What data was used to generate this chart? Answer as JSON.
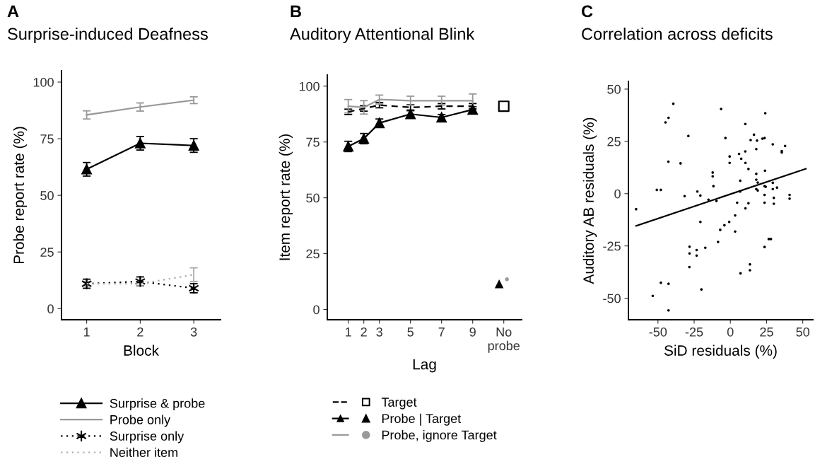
{
  "chart_data": [
    {
      "type": "line",
      "title": "Surprise-induced Deafness",
      "annotations": [
        "A"
      ],
      "xlabel": "Block",
      "ylabel": "Probe report rate (%)",
      "x": [
        1,
        2,
        3
      ],
      "xlim": [
        0.53,
        3.5
      ],
      "xticks": [
        1,
        2,
        3
      ],
      "ylim": [
        -4.9,
        105
      ],
      "yticks": [
        0,
        25,
        50,
        75,
        100
      ],
      "legend": "bottom",
      "series": [
        {
          "name": "Surprise & probe",
          "color": "#000000",
          "marker": "triangle",
          "line_style": "solid",
          "values": [
            61.5,
            73,
            72
          ],
          "errors": [
            3,
            3,
            3
          ]
        },
        {
          "name": "Probe only",
          "color": "#999999",
          "marker": "none",
          "line_style": "solid",
          "values": [
            85.5,
            89,
            92
          ],
          "errors": [
            1.8,
            1.8,
            1.5
          ]
        },
        {
          "name": "Surprise only",
          "color": "#000000",
          "marker": "cross",
          "line_style": "dotted",
          "values": [
            11,
            12,
            9
          ],
          "errors": [
            2,
            2,
            2
          ]
        },
        {
          "name": "Neither item",
          "color": "#aaaaaa",
          "marker": "none",
          "line_style": "dotted",
          "values": [
            11,
            11,
            15
          ],
          "errors": [
            1,
            1,
            3
          ]
        }
      ]
    },
    {
      "type": "line",
      "title": "Auditory Attentional Blink",
      "annotations": [
        "B"
      ],
      "xlabel": "Lag",
      "ylabel": "Item report rate (%)",
      "x": [
        1,
        2,
        3,
        5,
        7,
        9
      ],
      "xlim": [
        -0.35,
        12.15
      ],
      "xticks": [
        1,
        2,
        3,
        5,
        7,
        9,
        {
          "value": 11,
          "label": "No\nprobe"
        }
      ],
      "ylim": [
        -4.6,
        105
      ],
      "yticks": [
        0,
        25,
        50,
        75,
        100
      ],
      "legend": "bottom",
      "series": [
        {
          "name": "Target",
          "color": "#000000",
          "marker": "none",
          "line_style": "dashed",
          "values": [
            88.5,
            90,
            91.5,
            90.5,
            91,
            91
          ],
          "errors": [
            1.2,
            1.2,
            1.2,
            1.2,
            1.2,
            1.2
          ]
        },
        {
          "type": "scatter",
          "color": "#000000",
          "marker": "square",
          "x": [
            11
          ],
          "values": [
            91
          ]
        },
        {
          "name": "Probe | Target",
          "color": "#000000",
          "marker": "triangle",
          "line_style": "solid",
          "values": [
            73,
            76.5,
            83.5,
            87.5,
            86,
            89.5
          ],
          "errors": [
            2.3,
            2.3,
            1.8,
            1.5,
            1.3,
            1.3
          ]
        },
        {
          "type": "scatter",
          "color": "#000000",
          "marker": "triangle",
          "x": [
            10.7
          ],
          "values": [
            11.5
          ]
        },
        {
          "name": "Probe, ignore Target",
          "color": "#999999",
          "marker": "none",
          "line_style": "solid",
          "values": [
            91,
            90.5,
            94,
            93.5,
            93.5,
            93.5
          ],
          "errors": [
            3,
            3,
            2,
            2,
            2,
            3
          ]
        },
        {
          "type": "scatter",
          "color": "#999999",
          "marker": "circle",
          "x": [
            11.2
          ],
          "values": [
            13.5
          ]
        }
      ]
    },
    {
      "type": "scatter",
      "title": "Correlation across deficits",
      "annotations": [
        "C"
      ],
      "xlabel": "SiD residuals (%)",
      "ylabel": "Auditory AB residuals (%)",
      "xlim": [
        -70.4,
        57
      ],
      "xticks": [
        -50,
        -25,
        0,
        25,
        50
      ],
      "ylim": [
        -60.3,
        53.7
      ],
      "yticks": [
        -50,
        -25,
        0,
        25,
        50
      ],
      "series": [
        {
          "color": "#000000",
          "marker": "circle",
          "x": [
            -65.1,
            -39.4,
            -44.8,
            -42.7,
            -42.8,
            -50.8,
            -48.0,
            -34.4,
            -29.0,
            -31.6,
            -22.8,
            -20.7,
            -20.7,
            -28.2,
            -28.2,
            -23.3,
            -23.3,
            -17.3,
            -28.3,
            -20.0,
            -53.6,
            -48.0,
            -42.7,
            -42.7,
            -12.2,
            -12.2,
            -11.7,
            -15.1,
            -9.6,
            -8.5,
            -7.0,
            -4.1,
            -0.8,
            -6.4,
            -3.4,
            -0.5,
            -0.5,
            3.3,
            3.3,
            4.7,
            6.0,
            6.8,
            6.8,
            7.5,
            10.3,
            10.4,
            10.3,
            12.5,
            10.4,
            12.5,
            7.0,
            13.5,
            13.5,
            14.0,
            16.3,
            17.9,
            18.4,
            17.9,
            17.9,
            18.9,
            17.9,
            18.9,
            22.1,
            23.6,
            24.1,
            23.9,
            23.6,
            24.4,
            23.6,
            23.6,
            23.6,
            26.5,
            28.0,
            29.3,
            29.3,
            29.3,
            30.0,
            30.0,
            32.2,
            35.5,
            35.5,
            37.8,
            40.9,
            40.9
          ],
          "values": [
            -7.4,
            43.0,
            34.1,
            36.3,
            15.3,
            1.8,
            1.8,
            14.5,
            27.6,
            -1.2,
            1.0,
            -0.9,
            -13.5,
            -25.4,
            -28.6,
            -27.0,
            -29.6,
            -25.9,
            -35.1,
            -45.8,
            -48.9,
            -42.6,
            -43.1,
            -55.8,
            10.1,
            8.3,
            3.6,
            -2.9,
            -3.5,
            -23.1,
            -17.3,
            -15.1,
            -13.5,
            40.5,
            26.6,
            17.8,
            14.7,
            -10.4,
            -18.1,
            -4.3,
            19.0,
            6.2,
            1.0,
            16.7,
            20.2,
            14.7,
            33.3,
            11.8,
            -7.0,
            -4.6,
            -38.1,
            -33.8,
            -36.6,
            25.6,
            28.2,
            21.3,
            25.4,
            9.5,
            6.7,
            5.3,
            2.2,
            1.5,
            26.3,
            26.6,
            38.5,
            11.0,
            3.6,
            3.3,
            -0.6,
            -4.3,
            -25.5,
            -21.7,
            -21.7,
            23.6,
            5.2,
            2.2,
            -2.0,
            -4.8,
            2.9,
            20.4,
            19.7,
            22.8,
            -0.6,
            -2.4
          ]
        },
        {
          "type": "line",
          "color": "#000000",
          "marker": "none",
          "line_style": "solid",
          "x": [
            -65.1,
            52.1
          ],
          "values": [
            -15.4,
            11.9
          ]
        }
      ]
    }
  ]
}
